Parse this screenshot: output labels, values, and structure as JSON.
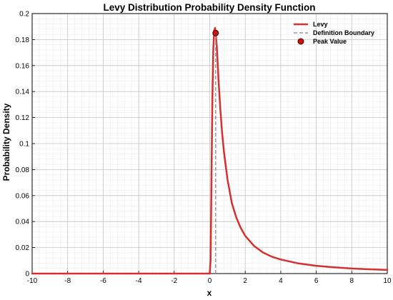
{
  "chart_data": {
    "type": "line",
    "title": "Levy Distribution Probability Density Function",
    "xlabel": "x",
    "ylabel": "Probability Density",
    "xlim": [
      -10,
      10
    ],
    "ylim": [
      0,
      0.2
    ],
    "x_ticks": [
      -10,
      -8,
      -6,
      -4,
      -2,
      0,
      2,
      4,
      6,
      8,
      10
    ],
    "y_ticks": [
      0,
      0.02,
      0.04,
      0.06,
      0.08,
      0.1,
      0.12,
      0.14,
      0.16,
      0.18,
      0.2
    ],
    "x_tick_labels": [
      "-10",
      "-8",
      "-6",
      "-4",
      "-2",
      "0",
      "2",
      "4",
      "6",
      "8",
      "10"
    ],
    "y_tick_labels": [
      "0",
      "0.02",
      "0.04",
      "0.06",
      "0.08",
      "0.1",
      "0.12",
      "0.14",
      "0.16",
      "0.18",
      "0.2"
    ],
    "grid": true,
    "minor_grid": true,
    "legend_position": "top-right",
    "series": [
      {
        "name": "Levy",
        "color": "#d62f2f",
        "style": "solid",
        "x": [
          -10,
          -8,
          -6,
          -4,
          -2,
          0,
          0.05,
          0.1,
          0.15,
          0.2,
          0.25,
          0.3,
          0.333,
          0.4,
          0.5,
          0.6,
          0.7,
          0.8,
          1,
          1.25,
          1.5,
          1.75,
          2,
          2.5,
          3,
          3.5,
          4,
          5,
          6,
          7,
          8,
          9,
          10
        ],
        "values": [
          0,
          0,
          0,
          0,
          0,
          0,
          0.0105,
          0.0738,
          0.135,
          0.1717,
          0.1868,
          0.189,
          0.185,
          0.1745,
          0.148,
          0.126,
          0.108,
          0.0938,
          0.0725,
          0.054,
          0.043,
          0.035,
          0.029,
          0.0212,
          0.0162,
          0.013,
          0.0108,
          0.0078,
          0.006,
          0.0048,
          0.0039,
          0.0033,
          0.0028
        ]
      },
      {
        "name": "Definition Boundary",
        "color": "#999999",
        "style": "dashed",
        "x": [
          0.333,
          0.333
        ],
        "values": [
          0,
          0.185
        ]
      },
      {
        "name": "Peak Value",
        "color": "#cc1111",
        "style": "marker",
        "x": [
          0.333
        ],
        "values": [
          0.185
        ]
      }
    ]
  }
}
